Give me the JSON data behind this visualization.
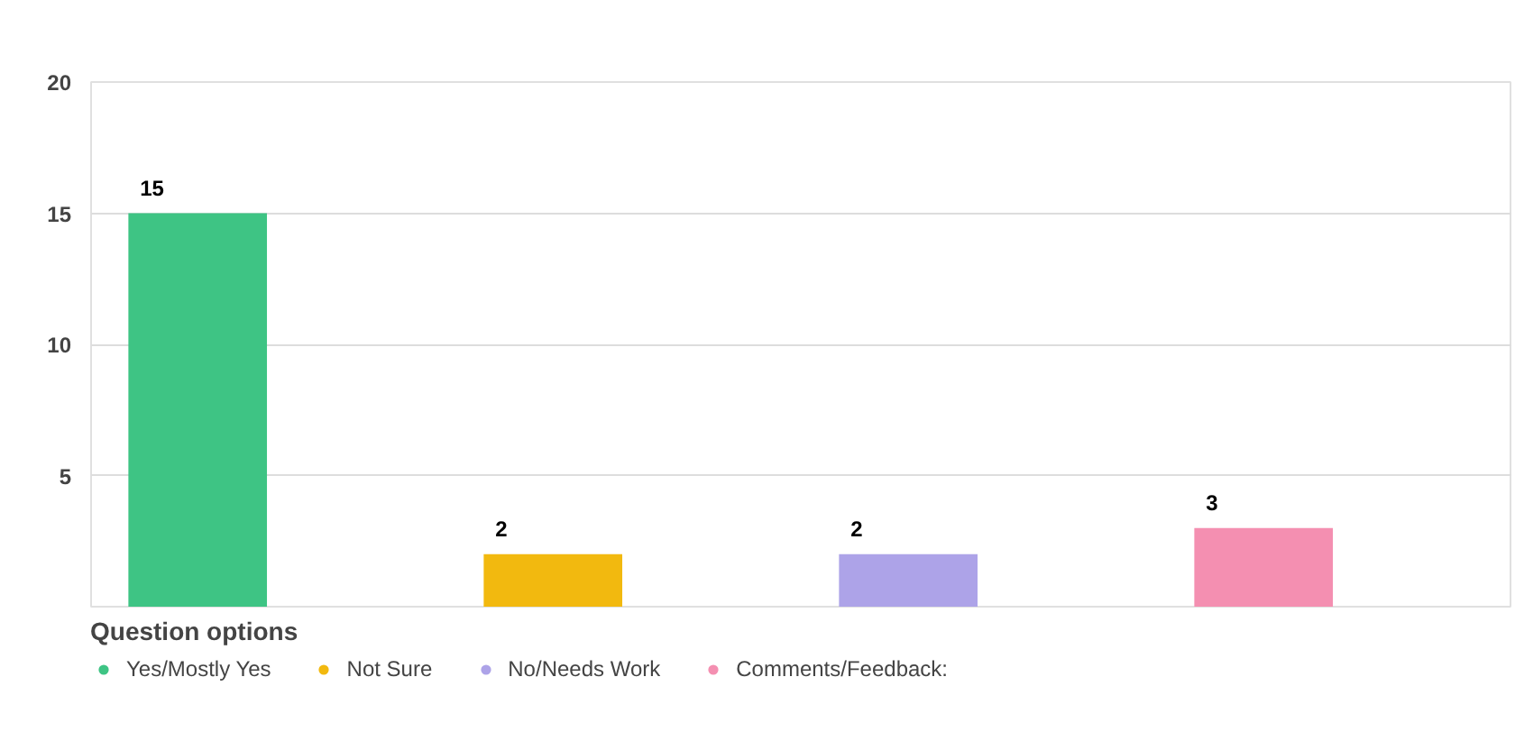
{
  "chart_data": {
    "type": "bar",
    "categories": [
      null,
      null,
      null,
      null
    ],
    "series": [
      {
        "name": "Yes/Mostly Yes",
        "color": "#3ec484",
        "values": [
          15,
          null,
          null,
          null
        ]
      },
      {
        "name": "Not Sure",
        "color": "#f2b90f",
        "values": [
          null,
          2,
          null,
          null
        ]
      },
      {
        "name": "No/Needs Work",
        "color": "#ada3e8",
        "values": [
          null,
          null,
          2,
          null
        ]
      },
      {
        "name": "Comments/Feedback:",
        "color": "#f48fb1",
        "values": [
          null,
          null,
          null,
          3
        ]
      }
    ],
    "ylim": [
      0,
      20
    ],
    "yticks": [
      {
        "value": 0,
        "label": null
      },
      5,
      10,
      15,
      20
    ],
    "grid": "y",
    "data_labels": true,
    "legend": "bottom",
    "legend_title": "Question options",
    "marker": "circle"
  }
}
